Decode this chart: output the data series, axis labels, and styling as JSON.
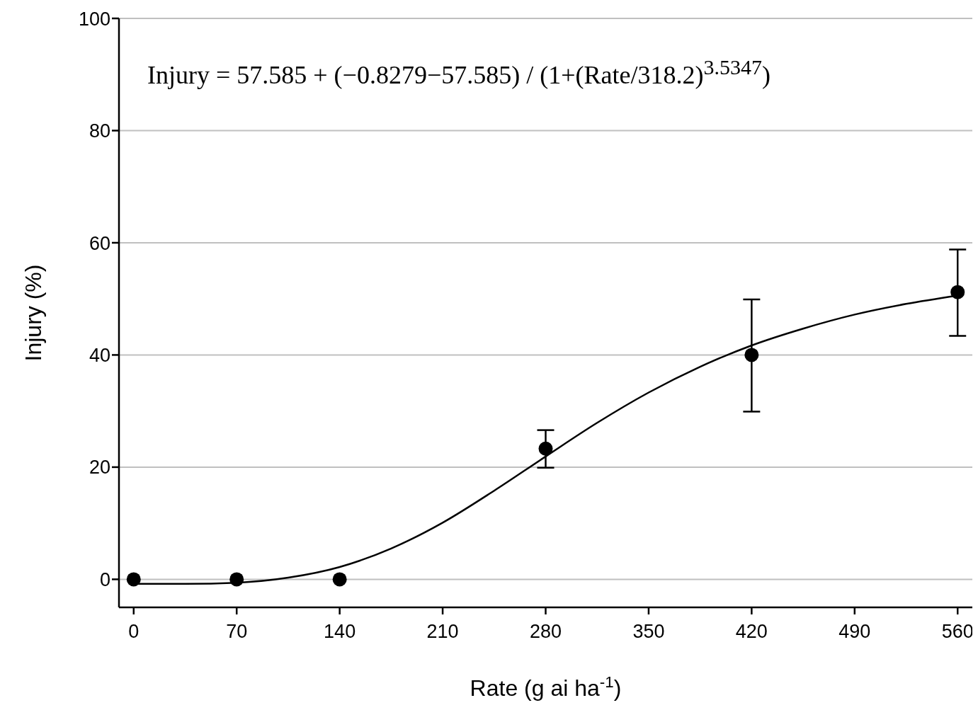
{
  "chart_data": {
    "type": "scatter",
    "xlabel": "Rate (g ai ha$^{-1}$)",
    "ylabel": "Injury (%)",
    "annotations": [
      "Injury = 57.585 + (−0.8279−57.585) / (1+(Rate/318.2)$^{3.5347}$)"
    ],
    "series": [
      {
        "color": "#000000",
        "marker": "circle",
        "x": [
          0,
          70,
          140,
          280,
          420,
          560
        ],
        "values": [
          0,
          0,
          0,
          23.3,
          40,
          51.2
        ],
        "errors": [
          null,
          null,
          null,
          [
            19.9,
            26.6
          ],
          [
            29.9,
            49.9
          ],
          [
            43.4,
            58.8
          ]
        ]
      },
      {
        "type": "line",
        "color": "#000000",
        "marker": "none",
        "line_style": "solid",
        "x": [
          0,
          35,
          70,
          105,
          140,
          175,
          210,
          245,
          280,
          315,
          350,
          385,
          420,
          455,
          490,
          525,
          560
        ],
        "values": [
          -0.8,
          -0.8,
          -0.6,
          0.3,
          2.2,
          5.5,
          10.1,
          15.8,
          21.9,
          27.9,
          33.3,
          37.9,
          41.7,
          44.7,
          47.2,
          49.1,
          50.6
        ]
      }
    ],
    "xlim": [
      -10,
      570
    ],
    "xticks": [
      0,
      70,
      140,
      210,
      280,
      350,
      420,
      490,
      560
    ],
    "ylim": [
      -5,
      100
    ],
    "yticks": [
      0,
      20,
      40,
      60,
      80,
      100
    ],
    "grid": "y",
    "legend": false
  }
}
